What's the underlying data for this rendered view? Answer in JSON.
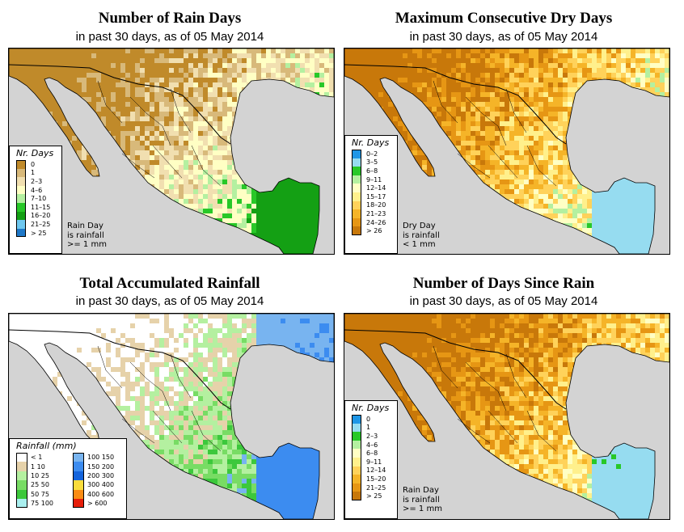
{
  "panels": [
    {
      "title": "Number of Rain Days",
      "subtitle": "in past 30 days, as of  05 May 2014",
      "legend": {
        "title": "Nr. Days",
        "items": [
          {
            "label": "0",
            "color": "#c08a2a"
          },
          {
            "label": "1",
            "color": "#d8b97a"
          },
          {
            "label": "2–3",
            "color": "#f1dfb0"
          },
          {
            "label": "4–6",
            "color": "#ffffc4"
          },
          {
            "label": "7–10",
            "color": "#b4f0a0"
          },
          {
            "label": "11–15",
            "color": "#28c828"
          },
          {
            "label": "16–20",
            "color": "#14a014"
          },
          {
            "label": "21–25",
            "color": "#6ec8f0"
          },
          {
            "label": "> 25",
            "color": "#1e78c8"
          }
        ]
      },
      "note": [
        "Rain Day",
        "is rainfall",
        ">= 1 mm"
      ],
      "palette": {
        "base": "#c08a2a",
        "mid": "#d8b97a",
        "light": "#f1dfb0",
        "wet1": "#ffffc4",
        "wet2": "#b4f0a0",
        "wet3": "#28c828",
        "wet4": "#14a014"
      }
    },
    {
      "title": "Maximum Consecutive Dry Days",
      "subtitle": "in past 30 days, as of  05 May 2014",
      "legend": {
        "title": "Nr. Days",
        "items": [
          {
            "label": "0–2",
            "color": "#1e96e6"
          },
          {
            "label": "3–5",
            "color": "#96dcf0"
          },
          {
            "label": "6–8",
            "color": "#28c828"
          },
          {
            "label": "9–11",
            "color": "#b4f0a0"
          },
          {
            "label": "12–14",
            "color": "#ffffc4"
          },
          {
            "label": "15–17",
            "color": "#fff08c"
          },
          {
            "label": "18–20",
            "color": "#ffd25a"
          },
          {
            "label": "21–23",
            "color": "#f5b428"
          },
          {
            "label": "24–26",
            "color": "#e69614"
          },
          {
            "label": "> 26",
            "color": "#c8780a"
          }
        ]
      },
      "note": [
        "Dry Day",
        "is rainfall",
        "< 1 mm"
      ]
    },
    {
      "title": "Total Accumulated Rainfall",
      "subtitle": "in past 30 days, as of  05 May 2014",
      "legend": {
        "title": "Rainfall (mm)",
        "left": [
          {
            "label": "<  1",
            "color": "#ffffff"
          },
          {
            "label": "1    10",
            "color": "#e6d2aa"
          },
          {
            "label": "10    25",
            "color": "#b4f0a0"
          },
          {
            "label": "25    50",
            "color": "#78dc64"
          },
          {
            "label": "50    75",
            "color": "#3cc83c"
          },
          {
            "label": "75  100",
            "color": "#aaf0f0"
          }
        ],
        "right": [
          {
            "label": "100  150",
            "color": "#78b4f0"
          },
          {
            "label": "150  200",
            "color": "#3c8cf0"
          },
          {
            "label": "200  300",
            "color": "#1464dc"
          },
          {
            "label": "300  400",
            "color": "#fadc3c"
          },
          {
            "label": "400  600",
            "color": "#fa8c14"
          },
          {
            "label": "> 600",
            "color": "#e61e0a"
          }
        ]
      }
    },
    {
      "title": "Number of Days Since Rain",
      "subtitle": "in past 30 days, as of  05 May 2014",
      "legend": {
        "title": "Nr. Days",
        "items": [
          {
            "label": "0",
            "color": "#1e96e6"
          },
          {
            "label": "1",
            "color": "#96dcf0"
          },
          {
            "label": "2–3",
            "color": "#28c828"
          },
          {
            "label": "4–6",
            "color": "#b4f0a0"
          },
          {
            "label": "6–8",
            "color": "#ffffc4"
          },
          {
            "label": "9–11",
            "color": "#fff08c"
          },
          {
            "label": "12–14",
            "color": "#ffd25a"
          },
          {
            "label": "15–20",
            "color": "#f5b428"
          },
          {
            "label": "21–25",
            "color": "#e69614"
          },
          {
            "label": "> 25",
            "color": "#c8780a"
          }
        ]
      },
      "note": [
        "Rain Day",
        "is rainfall",
        ">= 1 mm"
      ]
    }
  ],
  "colors": {
    "ocean": "#d3d3d3",
    "border": "#000000"
  }
}
